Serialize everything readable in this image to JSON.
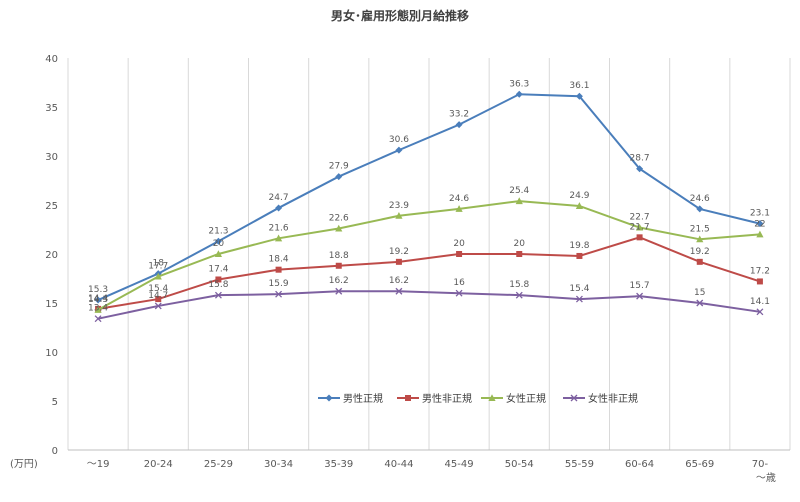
{
  "chart_data": {
    "type": "line",
    "title": "男女･雇用形態別月給推移",
    "ylabel": "(万円)",
    "xlabel": "",
    "categories": [
      "～19",
      "20-24",
      "25-29",
      "30-34",
      "35-39",
      "40-44",
      "45-49",
      "50-54",
      "55-59",
      "60-64",
      "65-69",
      "70-"
    ],
    "last_category_second_line": "～歳",
    "ylim": [
      0,
      40
    ],
    "yticks": [
      0,
      5,
      10,
      15,
      20,
      25,
      30,
      35,
      40
    ],
    "grid": "vertical",
    "legend_position": "bottom",
    "series": [
      {
        "name": "男性正規",
        "color": "#4a7ebb",
        "marker": "diamond",
        "values": [
          15.3,
          18,
          21.3,
          24.7,
          27.9,
          30.6,
          33.2,
          36.3,
          36.1,
          28.7,
          24.6,
          23.1
        ]
      },
      {
        "name": "男性非正規",
        "color": "#be4b48",
        "marker": "square",
        "values": [
          14.4,
          15.4,
          17.4,
          18.4,
          18.8,
          19.2,
          20,
          20,
          19.8,
          21.7,
          19.2,
          17.2
        ]
      },
      {
        "name": "女性正規",
        "color": "#98b954",
        "marker": "triangle",
        "values": [
          14.3,
          17.7,
          20,
          21.6,
          22.6,
          23.9,
          24.6,
          25.4,
          24.9,
          22.7,
          21.5,
          22
        ]
      },
      {
        "name": "女性非正規",
        "color": "#7d60a0",
        "marker": "x",
        "values": [
          13.4,
          14.7,
          15.8,
          15.9,
          16.2,
          16.2,
          16,
          15.8,
          15.4,
          15.7,
          15,
          14.1
        ]
      }
    ]
  }
}
